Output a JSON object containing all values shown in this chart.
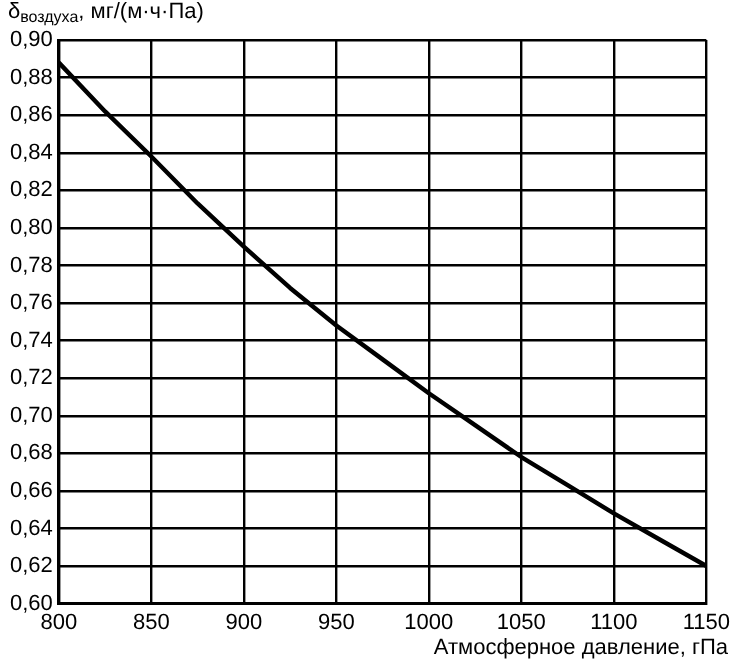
{
  "chart_data": {
    "type": "line",
    "ylabel": "δ$_{воздуха}$, мг/(м·ч·Па)",
    "xlabel": "Атмосферное давление, гПа",
    "x": [
      800,
      825,
      850,
      875,
      900,
      925,
      950,
      975,
      1000,
      1025,
      1050,
      1075,
      1100,
      1125,
      1150
    ],
    "series": [
      {
        "color": "#000000",
        "values": [
          0.888,
          0.862,
          0.838,
          0.813,
          0.79,
          0.768,
          0.748,
          0.73,
          0.712,
          0.695,
          0.678,
          0.663,
          0.648,
          0.634,
          0.62
        ]
      }
    ],
    "xlim": [
      800,
      1150
    ],
    "xticks": [
      800,
      850,
      900,
      950,
      1000,
      1050,
      1100,
      1150
    ],
    "ylim": [
      0.6,
      0.9
    ],
    "yticks": [
      {
        "value": 0.6,
        "label": "0,60"
      },
      {
        "value": 0.62,
        "label": "0,62"
      },
      {
        "value": 0.64,
        "label": "0,64"
      },
      {
        "value": 0.66,
        "label": "0,66"
      },
      {
        "value": 0.68,
        "label": "0,68"
      },
      {
        "value": 0.7,
        "label": "0,70"
      },
      {
        "value": 0.72,
        "label": "0,72"
      },
      {
        "value": 0.74,
        "label": "0,74"
      },
      {
        "value": 0.76,
        "label": "0,76"
      },
      {
        "value": 0.78,
        "label": "0,78"
      },
      {
        "value": 0.8,
        "label": "0,80"
      },
      {
        "value": 0.82,
        "label": "0,82"
      },
      {
        "value": 0.84,
        "label": "0,84"
      },
      {
        "value": 0.86,
        "label": "0,86"
      },
      {
        "value": 0.88,
        "label": "0,88"
      },
      {
        "value": 0.9,
        "label": "0,90"
      }
    ],
    "grid": true,
    "legend": false,
    "marker": "none",
    "line_style": "solid"
  }
}
